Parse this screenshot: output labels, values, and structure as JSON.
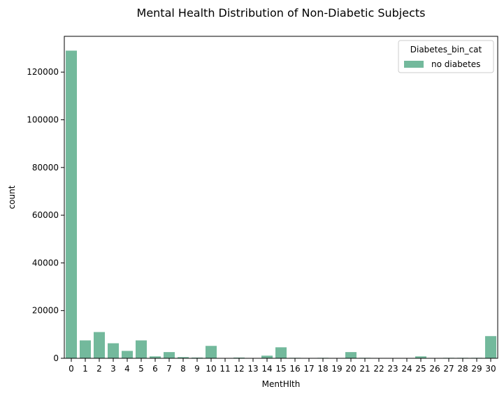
{
  "chart_data": {
    "type": "bar",
    "title": "Mental Health Distribution of Non-Diabetic Subjects",
    "xlabel": "MentHlth",
    "ylabel": "count",
    "categories": [
      "0",
      "1",
      "2",
      "3",
      "4",
      "5",
      "6",
      "7",
      "8",
      "9",
      "10",
      "11",
      "12",
      "13",
      "14",
      "15",
      "16",
      "17",
      "18",
      "19",
      "20",
      "21",
      "22",
      "23",
      "24",
      "25",
      "26",
      "27",
      "28",
      "29",
      "30"
    ],
    "series": [
      {
        "name": "no diabetes",
        "color": "#73b99c",
        "values": [
          129000,
          7500,
          11000,
          6300,
          3100,
          7500,
          800,
          2600,
          500,
          300,
          5200,
          0,
          300,
          0,
          1100,
          4600,
          200,
          100,
          200,
          0,
          2600,
          200,
          0,
          0,
          0,
          800,
          0,
          200,
          200,
          200,
          9300
        ]
      }
    ],
    "ylim": [
      0,
      135000
    ],
    "yticks": [
      0,
      20000,
      40000,
      60000,
      80000,
      100000,
      120000
    ],
    "ytick_labels": [
      "0",
      "20000",
      "40000",
      "60000",
      "80000",
      "100000",
      "120000"
    ],
    "legend": {
      "title": "Diabetes_bin_cat",
      "position": "top-right"
    },
    "grid": false
  }
}
